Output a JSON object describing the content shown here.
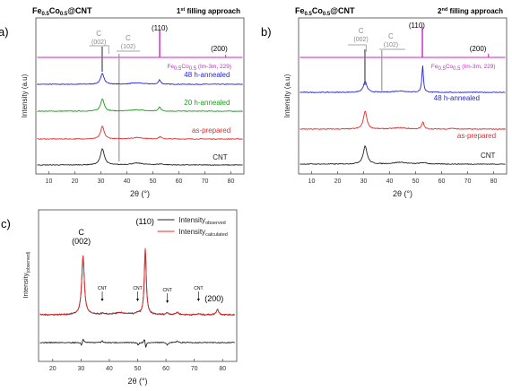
{
  "chart_data": [
    {
      "type": "line",
      "panel_label": "a)",
      "title": "Fe0.5Co0.5@CNT",
      "title_parts": {
        "base": "Fe",
        "sub1": "0.5",
        "mid": "Co",
        "sub2": "0.5",
        "tail": "@CNT"
      },
      "subtitle": "1st filling approach",
      "subtitle_parts": {
        "base": "1",
        "sup": "st",
        "tail": " filling approach"
      },
      "xlabel": "2θ (°)",
      "ylabel": "Intensity (a.u)",
      "xlim": [
        5,
        85
      ],
      "xticks": [
        10,
        20,
        30,
        40,
        50,
        60,
        70,
        80
      ],
      "peak_labels": [
        {
          "name": "C",
          "hkl": "(002)",
          "x": 30.5
        },
        {
          "name": "C",
          "hkl": "(102)",
          "x": 37.0
        },
        {
          "name": "",
          "hkl": "(110)",
          "x": 52.6
        },
        {
          "name": "",
          "hkl": "(200)",
          "x": 78.0
        }
      ],
      "reference_label": "Fe0.5Co0.5 (Im-3m, 229)",
      "reference_parts": {
        "base": "Fe",
        "sub1": "0.5",
        "mid": "Co",
        "sub2": "0.5",
        "tail": " (Im-3m, 229)"
      },
      "series": [
        {
          "name": "CNT",
          "color": "#222222"
        },
        {
          "name": "as-prepared",
          "color": "#e8282b"
        },
        {
          "name": "20 h-annealed",
          "color": "#1f9a1f"
        },
        {
          "name": "48 h-annealed",
          "color": "#2626d9"
        },
        {
          "name": "",
          "color": "#d21fd2",
          "role": "reference"
        }
      ]
    },
    {
      "type": "line",
      "panel_label": "b)",
      "title": "Fe0.5Co0.5@CNT",
      "title_parts": {
        "base": "Fe",
        "sub1": "0.5",
        "mid": "Co",
        "sub2": "0.5",
        "tail": "@CNT"
      },
      "subtitle": "2nd filling approach",
      "subtitle_parts": {
        "base": "2",
        "sup": "nd",
        "tail": " filling approach"
      },
      "xlabel": "2θ (°)",
      "ylabel": "Intensity (a.u)",
      "xlim": [
        5,
        85
      ],
      "xticks": [
        10,
        20,
        30,
        40,
        50,
        60,
        70,
        80
      ],
      "peak_labels": [
        {
          "name": "C",
          "hkl": "(002)",
          "x": 30.5
        },
        {
          "name": "C",
          "hkl": "(102)",
          "x": 37.0
        },
        {
          "name": "",
          "hkl": "(110)",
          "x": 52.6
        },
        {
          "name": "",
          "hkl": "(200)",
          "x": 78.0
        }
      ],
      "reference_label": "Fe0.5Co0.5 (Im-3m, 229)",
      "reference_parts": {
        "base": "Fe",
        "sub1": "0.5",
        "mid": "Co",
        "sub2": "0.5",
        "tail": " (Im-3m, 229)"
      },
      "series": [
        {
          "name": "CNT",
          "color": "#222222"
        },
        {
          "name": "as-prepared",
          "color": "#e8282b"
        },
        {
          "name": "48 h-annealed",
          "color": "#2626d9"
        },
        {
          "name": "",
          "color": "#d21fd2",
          "role": "reference"
        }
      ]
    },
    {
      "type": "line",
      "panel_label": "c)",
      "xlabel": "2θ (°)",
      "ylabel": "Intensity(observed)",
      "ylabel_parts": {
        "base": "Intensity",
        "sub": "(observed)"
      },
      "xlim": [
        15,
        85
      ],
      "xticks": [
        20,
        30,
        40,
        50,
        60,
        70,
        80
      ],
      "peak_labels": [
        {
          "name": "C",
          "hkl": "(002)",
          "x": 30.5
        },
        {
          "name": "",
          "hkl": "(110)",
          "x": 52.6
        },
        {
          "name": "",
          "hkl": "(200)",
          "x": 78.0
        }
      ],
      "cnt_markers": [
        {
          "label": "CNT",
          "x": 37.5
        },
        {
          "label": "CNT",
          "x": 50.0
        },
        {
          "label": "CNT",
          "x": 60.5
        },
        {
          "label": "CNT",
          "x": 71.5
        }
      ],
      "legend": {
        "placement": "top-right",
        "entries": [
          {
            "base": "Intensity",
            "sub": "observed",
            "color": "#222222"
          },
          {
            "base": "Intensity",
            "sub": "calculated",
            "color": "#e8282b"
          }
        ]
      },
      "series": [
        {
          "name": "Intensity observed",
          "color": "#222222"
        },
        {
          "name": "Intensity calculated",
          "color": "#e8282b"
        },
        {
          "name": "",
          "color": "#222222",
          "role": "difference"
        }
      ]
    }
  ]
}
